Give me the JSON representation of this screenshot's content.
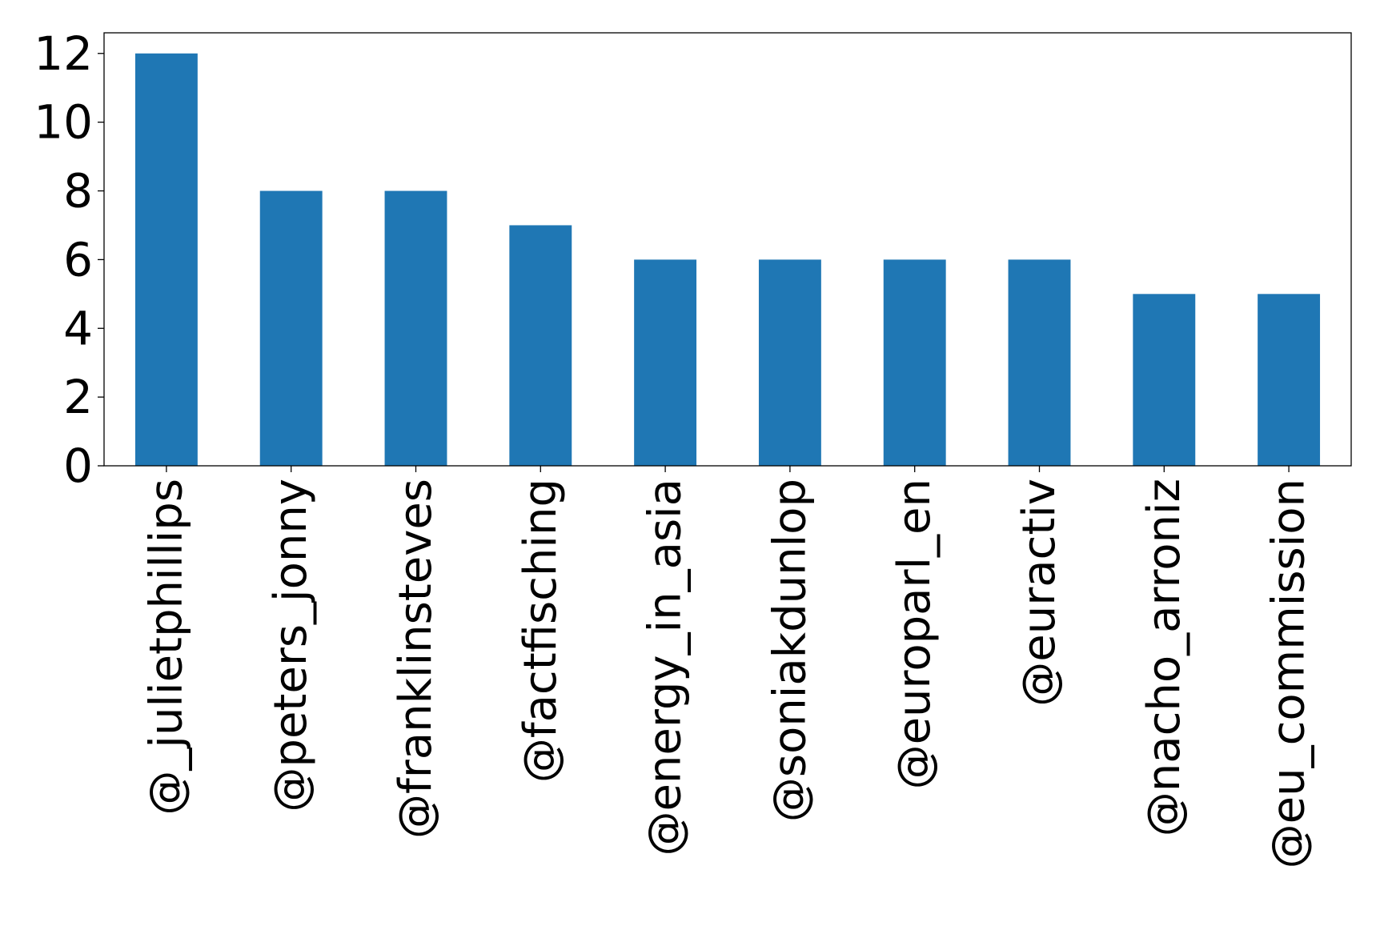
{
  "chart_data": {
    "type": "bar",
    "categories": [
      "@_julietphillips",
      "@peters_jonny",
      "@franklinsteves",
      "@factfisching",
      "@energy_in_asia",
      "@soniakdunlop",
      "@europarl_en",
      "@euractiv",
      "@nacho_arroniz",
      "@eu_commission"
    ],
    "values": [
      12,
      8,
      8,
      7,
      6,
      6,
      6,
      6,
      5,
      5
    ],
    "ylim": [
      0,
      12.6
    ],
    "yticks": [
      0,
      2,
      4,
      6,
      8,
      10,
      12
    ],
    "title": "",
    "xlabel": "",
    "ylabel": "",
    "grid": false,
    "legend": "none",
    "bar_color": "#1f77b4"
  }
}
